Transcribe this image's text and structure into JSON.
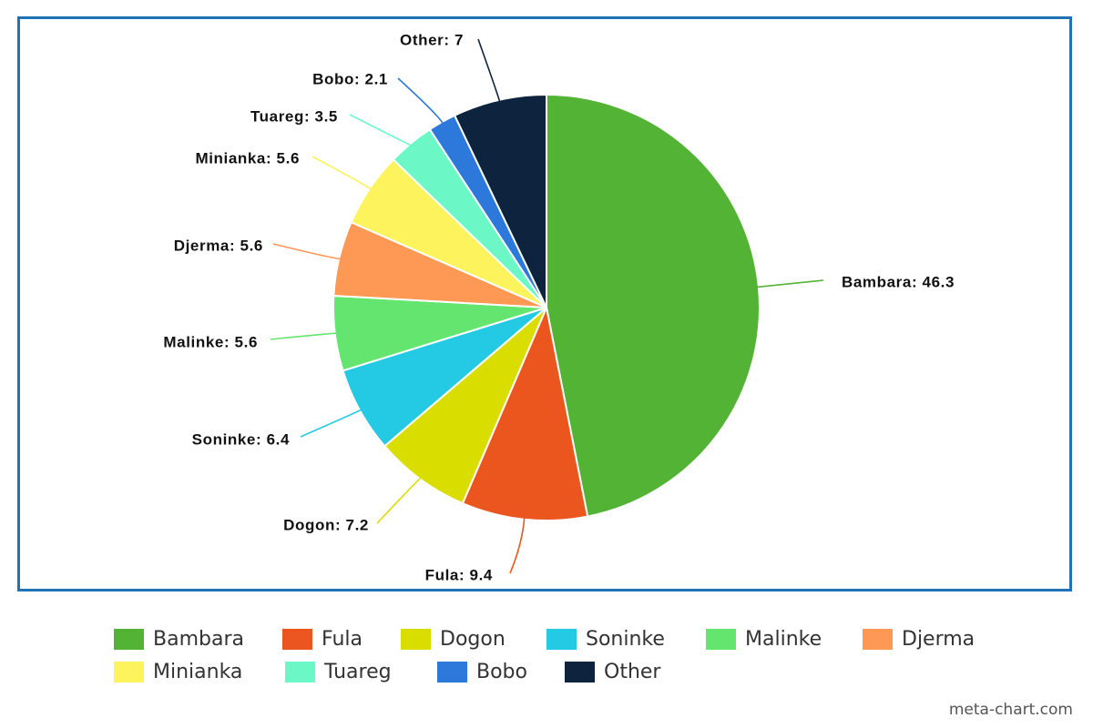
{
  "chart_data": {
    "type": "pie",
    "title": "",
    "slices": [
      {
        "name": "Bambara",
        "value": 46.3,
        "label": "Bambara: 46.3",
        "color": "#52b334"
      },
      {
        "name": "Fula",
        "value": 9.4,
        "label": "Fula: 9.4",
        "color": "#eb561f"
      },
      {
        "name": "Dogon",
        "value": 7.2,
        "label": "Dogon: 7.2",
        "color": "#dade00"
      },
      {
        "name": "Soninke",
        "value": 6.4,
        "label": "Soninke: 6.4",
        "color": "#24cae4"
      },
      {
        "name": "Malinke",
        "value": 5.6,
        "label": "Malinke: 5.6",
        "color": "#63e56f"
      },
      {
        "name": "Djerma",
        "value": 5.6,
        "label": "Djerma: 5.6",
        "color": "#fd9855"
      },
      {
        "name": "Minianka",
        "value": 5.6,
        "label": "Minianka: 5.6",
        "color": "#fdf45d"
      },
      {
        "name": "Tuareg",
        "value": 3.5,
        "label": "Tuareg: 3.5",
        "color": "#6cf8c6"
      },
      {
        "name": "Bobo",
        "value": 2.1,
        "label": "Bobo: 2.1",
        "color": "#2d78db"
      },
      {
        "name": "Other",
        "value": 7,
        "label": "Other: 7",
        "color": "#0e233d"
      }
    ],
    "legend_position": "bottom",
    "frame_color": "#1f72b8"
  },
  "legend": {
    "rows": [
      [
        "Bambara",
        "Fula",
        "Dogon",
        "Soninke",
        "Malinke",
        "Djerma"
      ],
      [
        "Minianka",
        "Tuareg",
        "Bobo",
        "Other"
      ]
    ]
  },
  "credit": "meta-chart.com"
}
